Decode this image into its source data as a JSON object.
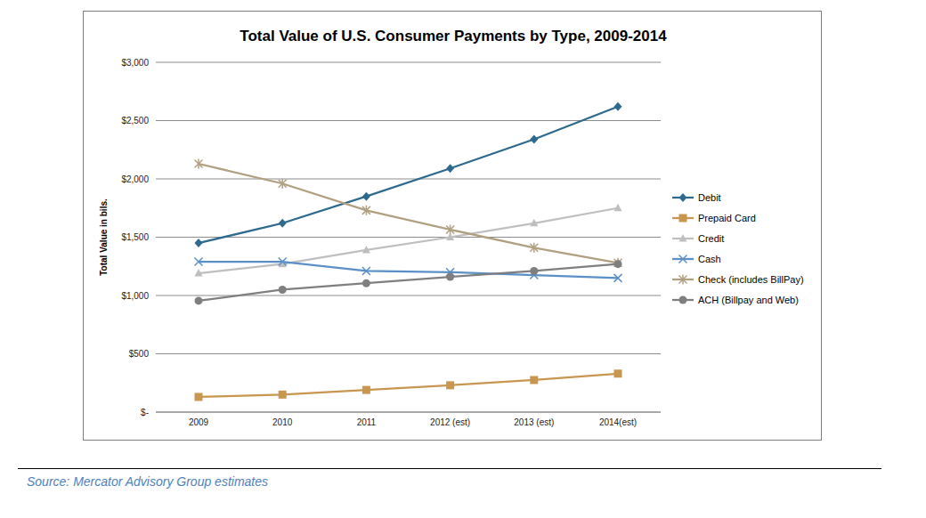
{
  "chart_data": {
    "type": "line",
    "title": "Total Value of U.S. Consumer Payments by Type, 2009-2014",
    "y_label": "Total Value in bils.",
    "source": "Source: Mercator Advisory Group estimates",
    "categories": [
      "2009",
      "2010",
      "2011",
      "2012 (est)",
      "2013 (est)",
      "2014(est)"
    ],
    "series": [
      {
        "name": "Debit",
        "color": "#2e6a8e",
        "marker": "diamond",
        "values": [
          1450,
          1620,
          1850,
          2090,
          2340,
          2620
        ]
      },
      {
        "name": "Prepaid Card",
        "color": "#c8964f",
        "marker": "square",
        "values": [
          130,
          150,
          190,
          230,
          275,
          330
        ]
      },
      {
        "name": "Credit",
        "color": "#bfbfbf",
        "marker": "triangle",
        "values": [
          1190,
          1270,
          1390,
          1500,
          1620,
          1750
        ]
      },
      {
        "name": "Cash",
        "color": "#5b8fc7",
        "marker": "x",
        "values": [
          1290,
          1290,
          1210,
          1200,
          1175,
          1150
        ]
      },
      {
        "name": "Check (includes BillPay)",
        "color": "#b0a080",
        "marker": "star",
        "values": [
          2130,
          1960,
          1730,
          1565,
          1410,
          1280
        ]
      },
      {
        "name": "ACH (Billpay and Web)",
        "color": "#7f7f7f",
        "marker": "circle",
        "values": [
          955,
          1050,
          1105,
          1160,
          1210,
          1270
        ]
      }
    ],
    "ylim": [
      0,
      3000
    ],
    "yticks": [
      {
        "value": 0,
        "label": "$-"
      },
      {
        "value": 500,
        "label": "$500"
      },
      {
        "value": 1000,
        "label": "$1,000"
      },
      {
        "value": 1500,
        "label": "$1,500"
      },
      {
        "value": 2000,
        "label": "$2,000"
      },
      {
        "value": 2500,
        "label": "$2,500"
      },
      {
        "value": 3000,
        "label": "$3,000"
      }
    ],
    "grid": true,
    "legend": "right"
  }
}
